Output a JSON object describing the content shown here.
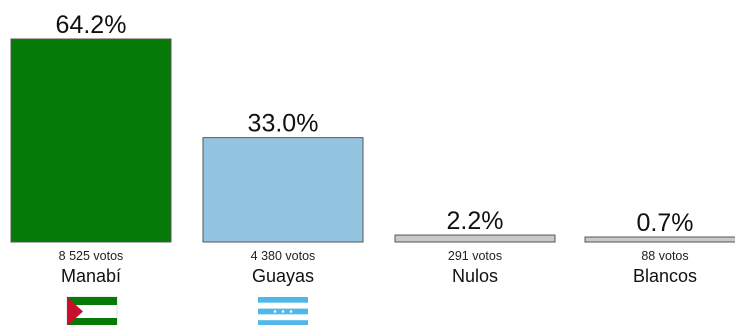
{
  "chart_data": {
    "type": "bar",
    "categories": [
      "Manabí",
      "Guayas",
      "Nulos",
      "Blancos"
    ],
    "values": [
      64.2,
      33.0,
      2.2,
      0.7
    ],
    "value_labels": [
      "64.2%",
      "33.0%",
      "2.2%",
      "0.7%"
    ],
    "votes_labels": [
      "8 525 votos",
      "4 380 votos",
      "291 votos",
      "88 votos"
    ],
    "colors": [
      "#067A06",
      "#93C5E1",
      "#C9C9C9",
      "#C9C9C9"
    ],
    "flags": [
      "manabi-flag",
      "guayas-flag",
      null,
      null
    ],
    "title": "",
    "xlabel": "",
    "ylabel": "",
    "ylim": [
      0,
      64.2
    ],
    "grid": false,
    "legend": "none"
  }
}
